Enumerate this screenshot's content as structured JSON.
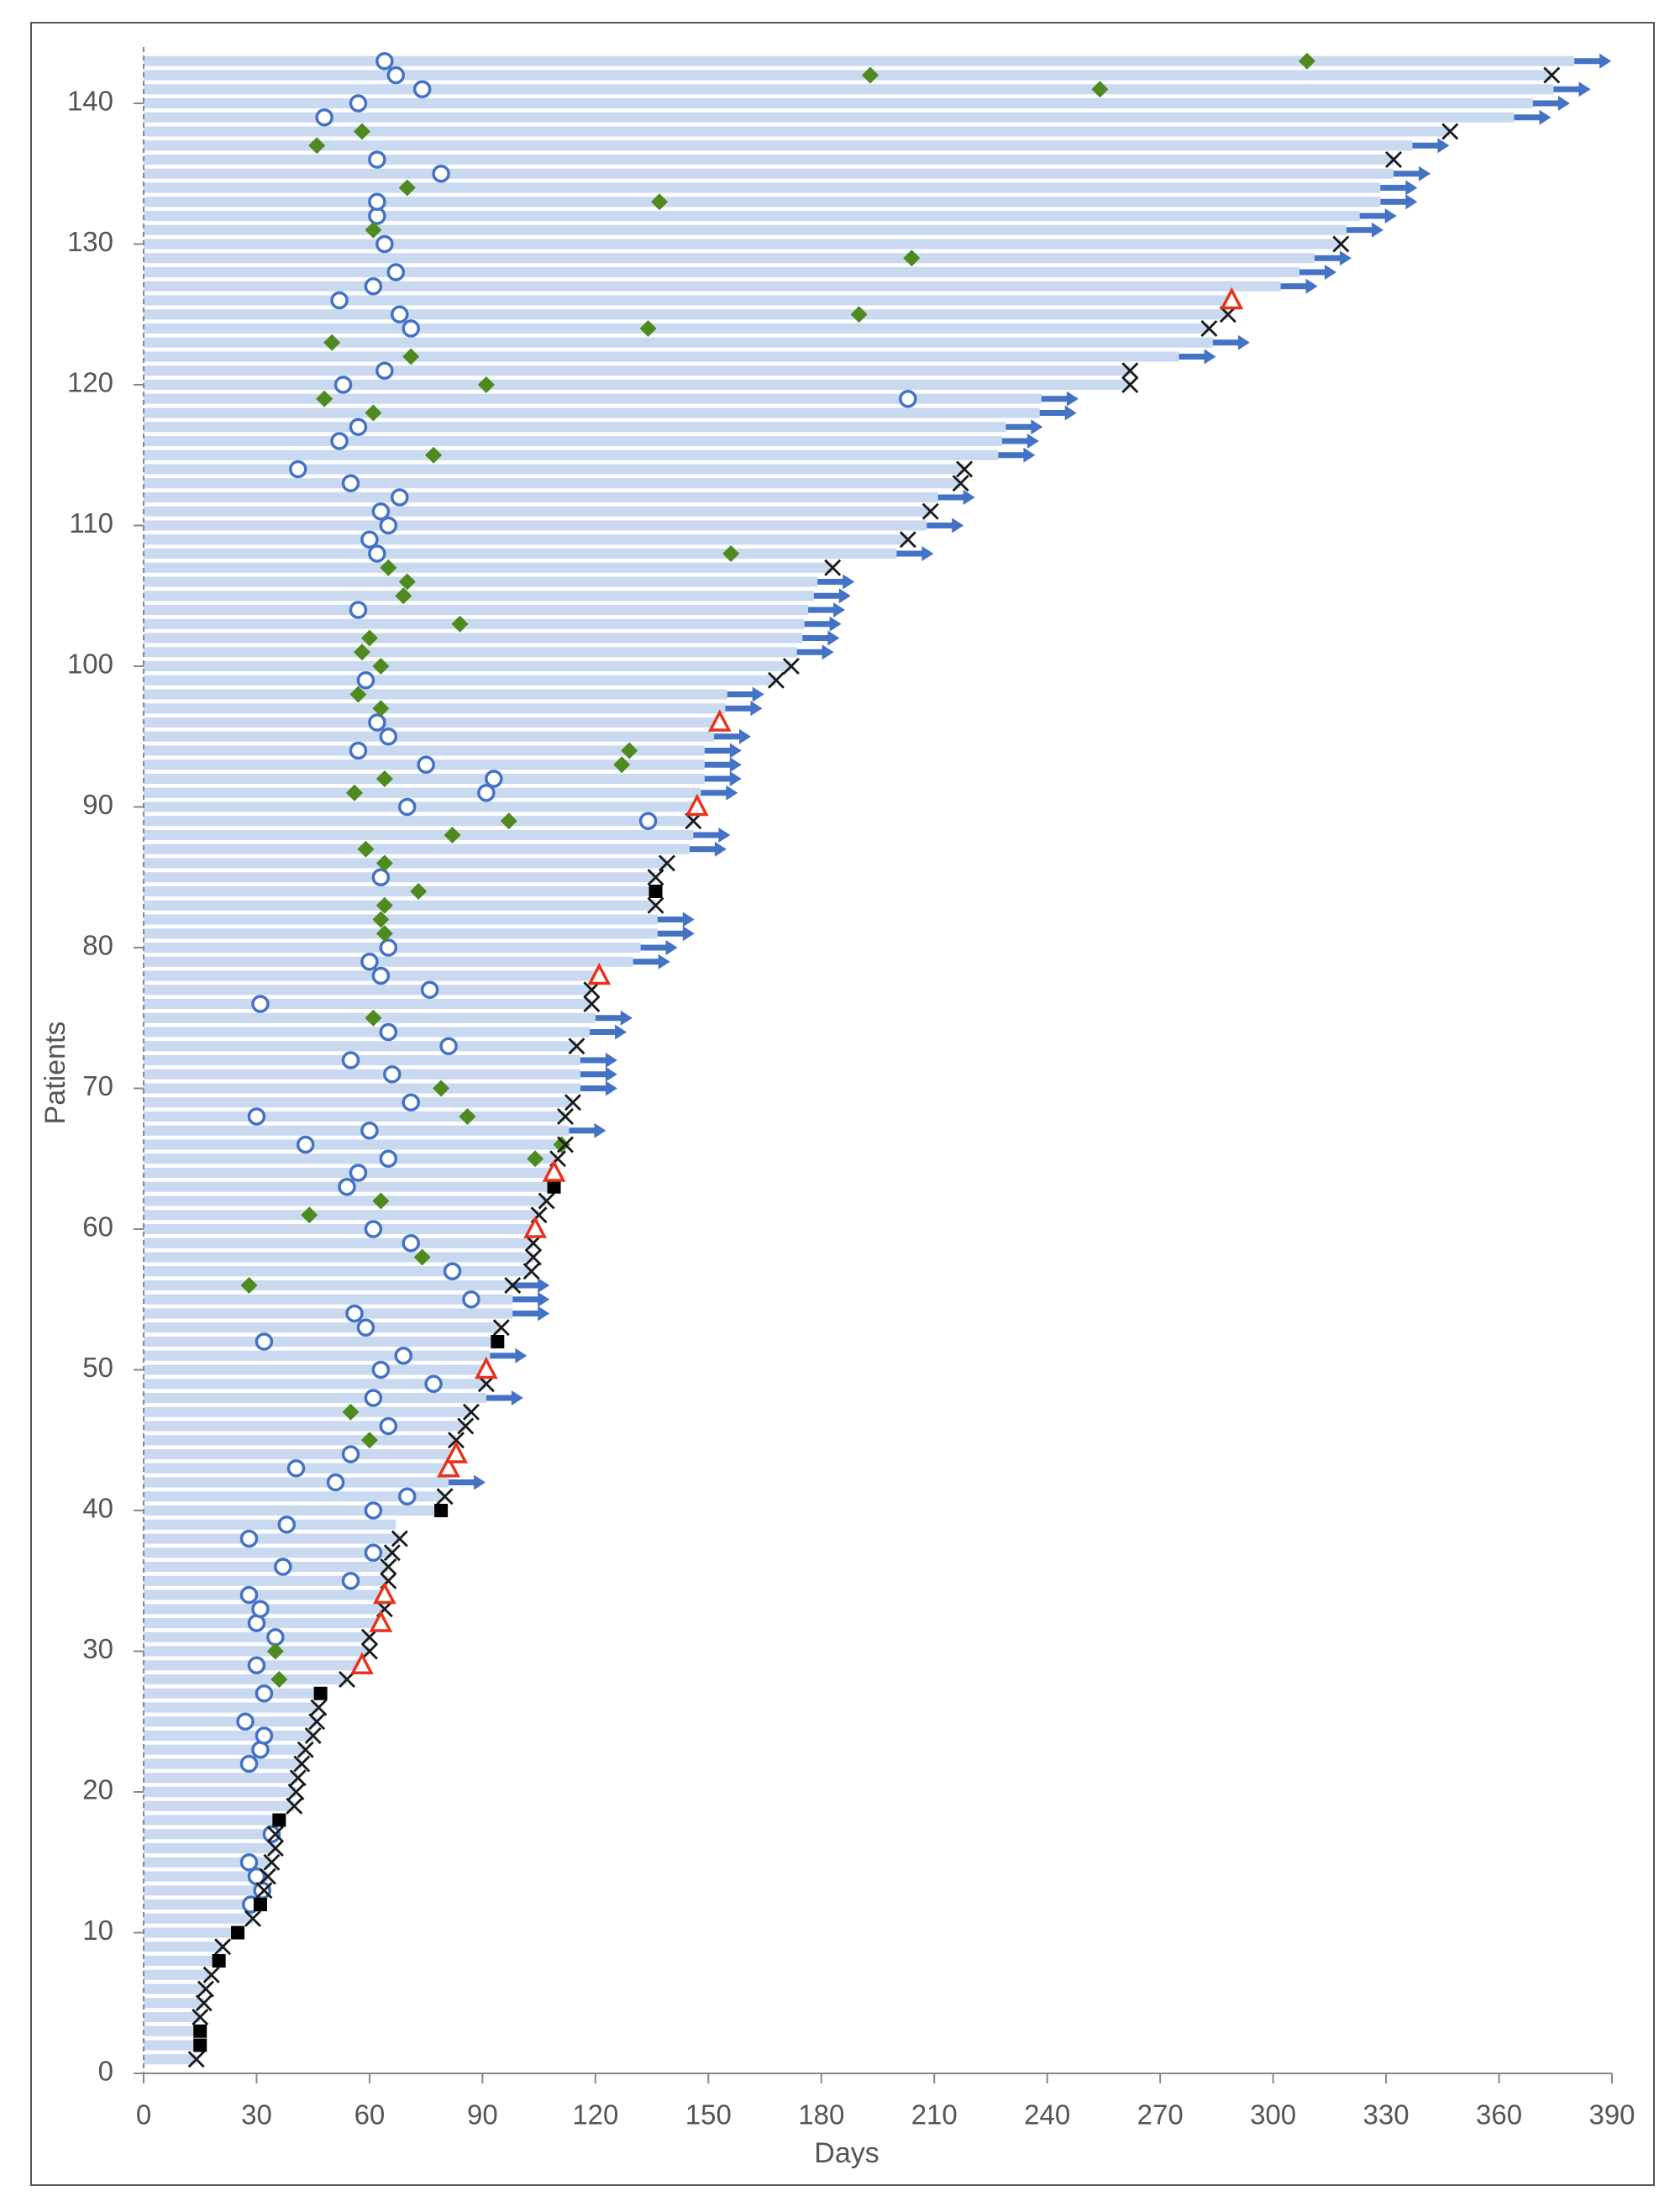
{
  "chart_data": {
    "type": "swimmer",
    "xlabel": "Days",
    "ylabel": "Patients",
    "xlim": [
      0,
      390
    ],
    "xticks": [
      0,
      30,
      60,
      90,
      120,
      150,
      180,
      210,
      240,
      270,
      300,
      330,
      360,
      390
    ],
    "ylim": [
      0,
      144
    ],
    "yticks": [
      0,
      10,
      20,
      30,
      40,
      50,
      60,
      70,
      80,
      90,
      100,
      110,
      120,
      130,
      140
    ],
    "bar_color": "#c9d9f0",
    "patients": [
      1,
      2,
      3,
      4,
      5,
      6,
      7,
      8,
      9,
      10,
      11,
      12,
      13,
      14,
      15,
      16,
      17,
      18,
      19,
      20,
      21,
      22,
      23,
      24,
      25,
      26,
      27,
      28,
      29,
      30,
      31,
      32,
      33,
      34,
      35,
      36,
      37,
      38,
      39,
      40,
      41,
      42,
      43,
      44,
      45,
      46,
      47,
      48,
      49,
      50,
      51,
      52,
      53,
      54,
      55,
      56,
      57,
      58,
      59,
      60,
      61,
      62,
      63,
      64,
      65,
      66,
      67,
      68,
      69,
      70,
      71,
      72,
      73,
      74,
      75,
      76,
      77,
      78,
      79,
      80,
      81,
      82,
      83,
      84,
      85,
      86,
      87,
      88,
      89,
      90,
      91,
      92,
      93,
      94,
      95,
      96,
      97,
      98,
      99,
      100,
      101,
      102,
      103,
      104,
      105,
      106,
      107,
      108,
      109,
      110,
      111,
      112,
      113,
      114,
      115,
      116,
      117,
      118,
      119,
      120,
      121,
      122,
      123,
      124,
      125,
      126,
      127,
      128,
      129,
      130,
      131,
      132,
      133,
      134,
      135,
      136,
      137,
      138,
      139,
      140,
      141,
      142,
      143
    ],
    "durations": [
      14,
      15,
      15,
      15,
      16,
      16.5,
      18,
      20,
      21,
      25,
      29,
      31,
      32,
      33,
      34,
      35,
      35,
      36,
      40,
      40.5,
      41,
      42,
      43,
      45,
      46,
      46.5,
      47,
      54,
      58,
      60,
      60,
      63,
      64,
      64,
      65,
      65,
      66,
      68,
      67,
      79,
      80,
      81,
      81,
      83,
      83,
      85.5,
      87,
      91,
      91,
      91,
      92,
      94,
      95,
      98,
      98,
      98,
      103,
      103.5,
      103.5,
      104,
      105,
      107,
      109,
      109,
      110,
      112,
      113,
      112,
      114,
      116,
      116,
      116,
      115,
      118.5,
      120,
      119,
      119,
      121,
      130,
      132,
      136.5,
      136.5,
      136,
      136,
      136,
      139,
      145,
      146,
      146,
      147,
      148,
      149,
      149,
      149,
      151.5,
      153,
      154.5,
      155,
      168,
      172,
      173.5,
      175,
      175.5,
      176.5,
      178,
      179,
      183,
      200,
      203,
      208,
      209,
      211,
      217,
      218,
      227,
      228,
      229,
      238,
      238.5,
      262,
      262,
      275,
      284,
      283,
      288,
      289,
      302,
      307,
      311,
      318,
      319.5,
      323,
      328.5,
      328.5,
      332,
      332,
      337,
      347,
      364,
      369,
      374.5,
      374,
      380
    ],
    "markers": [
      {
        "symbol": "circle",
        "color": "#4472c4",
        "y": [
          12,
          13,
          14,
          15,
          17,
          22,
          23,
          24,
          25,
          27,
          29,
          31,
          32,
          33,
          34,
          35,
          36,
          37,
          38,
          39,
          40,
          41,
          42,
          43,
          44,
          46,
          48,
          49,
          50,
          51,
          52,
          53,
          54,
          55,
          57,
          59,
          60,
          63,
          64,
          65,
          66,
          67,
          68,
          69,
          71,
          72,
          73,
          74,
          76,
          77,
          78,
          79,
          80,
          85,
          89,
          90,
          91,
          92,
          93,
          94,
          95,
          96,
          99,
          104,
          108,
          109,
          110,
          111,
          112,
          113,
          114,
          116,
          117,
          119,
          120,
          121,
          124,
          125,
          126,
          127,
          128,
          130,
          132,
          133,
          135,
          136,
          139,
          140,
          141,
          142,
          143
        ],
        "x": [
          28.5,
          31.5,
          30,
          28,
          34,
          28,
          31,
          32,
          27,
          32,
          30,
          35,
          30,
          31,
          28,
          55,
          37,
          61,
          28,
          38,
          61,
          70,
          51,
          40.5,
          55,
          65,
          61,
          77,
          63,
          69,
          32,
          59,
          56,
          87,
          82,
          71,
          61,
          54,
          57,
          65,
          43,
          60,
          30,
          71,
          66,
          55,
          81,
          65,
          31,
          76,
          63,
          60,
          65,
          63,
          134,
          70,
          91,
          93,
          75,
          57,
          65,
          62,
          59,
          57,
          62,
          60,
          65,
          63,
          68,
          55,
          41,
          52,
          57,
          203,
          53,
          64,
          71,
          68,
          52,
          61,
          67,
          64,
          62,
          62,
          79,
          62,
          48,
          57,
          74,
          67,
          64
        ]
      },
      {
        "symbol": "diamond",
        "color": "#4e8a1e",
        "y": [
          28,
          30,
          45,
          47,
          56,
          58,
          61,
          62,
          65,
          66,
          68,
          70,
          75,
          81,
          82,
          83,
          84,
          86,
          87,
          88,
          89,
          91,
          92,
          93,
          94,
          97,
          98,
          100,
          101,
          102,
          103,
          105,
          106,
          107,
          108,
          115,
          118,
          119,
          120,
          122,
          123,
          124,
          125,
          129,
          131,
          133,
          134,
          137,
          138,
          141,
          142,
          143
        ],
        "x": [
          36,
          35,
          60,
          55,
          28,
          74,
          44,
          63,
          104,
          111,
          86,
          79,
          61,
          64,
          63,
          64,
          73,
          64,
          59,
          82,
          97,
          56,
          64,
          127,
          129,
          63,
          57,
          63,
          58,
          60,
          84,
          69,
          70,
          65,
          156,
          77,
          61,
          48,
          91,
          71,
          50,
          134,
          190,
          204,
          61,
          137,
          70,
          46,
          58,
          254,
          193,
          309
        ]
      },
      {
        "symbol": "cross",
        "color": "#1a1a1a",
        "y": [
          1,
          4,
          5,
          6,
          7,
          9,
          11,
          13,
          14,
          15,
          16,
          17,
          19,
          20,
          21,
          22,
          23,
          24,
          25,
          26,
          28,
          30,
          31,
          33,
          35,
          36,
          37,
          38,
          41,
          45,
          46,
          47,
          49,
          53,
          56,
          57,
          58,
          59,
          61,
          62,
          65,
          66,
          68,
          69,
          73,
          76,
          77,
          83,
          85,
          86,
          89,
          99,
          100,
          107,
          109,
          111,
          113,
          114,
          120,
          121,
          124,
          125,
          130,
          136,
          138,
          142
        ],
        "x": [
          14,
          15,
          16,
          16.5,
          18,
          21,
          29,
          32,
          33,
          34,
          35,
          35,
          40,
          40.5,
          41,
          42,
          43,
          45,
          46,
          46.5,
          54,
          60,
          60,
          64,
          65,
          65,
          66,
          68,
          80,
          83,
          85.5,
          87,
          91,
          95,
          98,
          103,
          103.5,
          103.5,
          105,
          107,
          110,
          112,
          112,
          114,
          115,
          119,
          119,
          136,
          136,
          139,
          146,
          168,
          172,
          183,
          203,
          209,
          217,
          218,
          262,
          262,
          283,
          288,
          318,
          332,
          347,
          374
        ]
      },
      {
        "symbol": "square",
        "color": "#000000",
        "y": [
          2,
          3,
          8,
          10,
          12,
          18,
          27,
          40,
          52,
          63,
          84
        ],
        "x": [
          15,
          15,
          20,
          25,
          31,
          36,
          47,
          79,
          94,
          109,
          136
        ]
      },
      {
        "symbol": "triangle",
        "color": "#e8321c",
        "y": [
          29,
          32,
          34,
          43,
          44,
          50,
          60,
          64,
          78,
          90,
          96,
          126
        ],
        "x": [
          58,
          63,
          64,
          81,
          83,
          91,
          104,
          109,
          121,
          147,
          153,
          289
        ]
      },
      {
        "symbol": "arrow",
        "color": "#4472c4",
        "y": [
          42,
          48,
          51,
          54,
          55,
          56,
          67,
          70,
          71,
          72,
          74,
          75,
          79,
          80,
          81,
          82,
          87,
          88,
          91,
          92,
          93,
          94,
          95,
          97,
          98,
          101,
          102,
          103,
          104,
          105,
          106,
          108,
          110,
          112,
          115,
          116,
          117,
          118,
          119,
          122,
          123,
          127,
          128,
          129,
          131,
          132,
          133,
          134,
          135,
          137,
          139,
          140,
          141,
          143
        ],
        "x": [
          81,
          91,
          92,
          98,
          98,
          98,
          113,
          116,
          116,
          116,
          118.5,
          120,
          130,
          132,
          136.5,
          136.5,
          145,
          146,
          148,
          149,
          149,
          149,
          151.5,
          154.5,
          155,
          173.5,
          175,
          175.5,
          176.5,
          178,
          179,
          200,
          208,
          211,
          227,
          228,
          229,
          238,
          238.5,
          275,
          284,
          302,
          307,
          311,
          319.5,
          323,
          328.5,
          328.5,
          332,
          337,
          364,
          369,
          374.5,
          380
        ]
      }
    ]
  }
}
